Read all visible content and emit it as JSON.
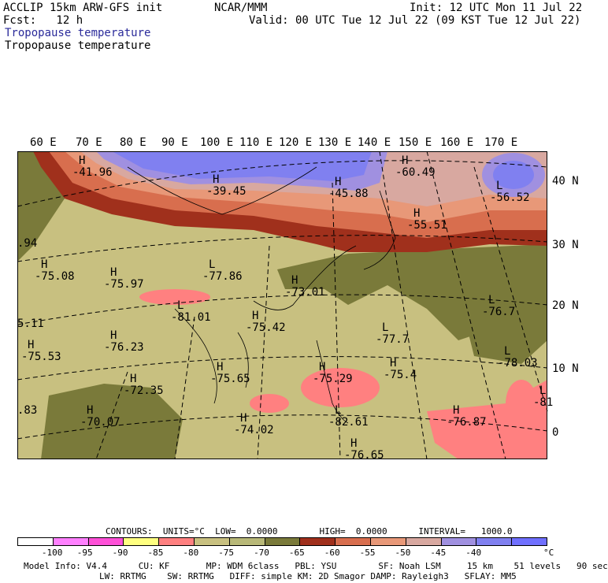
{
  "header": {
    "line1_left": "ACCLIP 15km ARW-GFS init",
    "line1_center": "NCAR/MMM",
    "line1_right": "Init: 12 UTC Mon 11 Jul 22",
    "line2_left": "Fcst:   12 h",
    "line2_right": "Valid: 00 UTC Tue 12 Jul 22 (09 KST Tue 12 Jul 22)",
    "field_title_1": "Tropopause temperature",
    "field_title_2": "Tropopause temperature"
  },
  "axes": {
    "lon_labels": [
      "60 E",
      "70 E",
      "80 E",
      "90 E",
      "100 E",
      "110 E",
      "120 E",
      "130 E",
      "140 E",
      "150 E",
      "160 E",
      "170 E"
    ],
    "lat_labels": [
      "40 N",
      "30 N",
      "20 N",
      "10 N",
      "0"
    ]
  },
  "map_labels": [
    {
      "type": "H",
      "value": "-41.96"
    },
    {
      "type": "H",
      "value": "-39.45"
    },
    {
      "type": "H",
      "value": "-45.88"
    },
    {
      "type": "H",
      "value": "-60.49"
    },
    {
      "type": "L",
      "value": "-56.52"
    },
    {
      "type": "H",
      "value": "-55.51"
    },
    {
      "type": "H",
      "value": "-75.08"
    },
    {
      "type": "H",
      "value": "-75.97"
    },
    {
      "type": "L",
      "value": "-77.86"
    },
    {
      "type": "H",
      "value": "-73.01"
    },
    {
      "type": "L",
      "value": "-76.7"
    },
    {
      "type": "L",
      "value": "-81.01"
    },
    {
      "type": "H",
      "value": "-75.42"
    },
    {
      "type": "L",
      "value": "-77.7"
    },
    {
      "type": "H",
      "value": "-76.23"
    },
    {
      "type": "H",
      "value": "-75.53"
    },
    {
      "type": "L",
      "value": "-78.03"
    },
    {
      "type": "H",
      "value": "-75.65"
    },
    {
      "type": "H",
      "value": "-75.29"
    },
    {
      "type": "H",
      "value": "-75.4"
    },
    {
      "type": "H",
      "value": "-72.35"
    },
    {
      "type": "L",
      "value": "-81"
    },
    {
      "type": "H",
      "value": "-70.07"
    },
    {
      "type": "H",
      "value": "-74.02"
    },
    {
      "type": "L",
      "value": "-82.61"
    },
    {
      "type": "H",
      "value": "-76.87"
    },
    {
      "type": "H",
      "value": "-76.65"
    },
    {
      "type": "",
      "value": ".94"
    },
    {
      "type": "",
      "value": "5.11"
    },
    {
      "type": "",
      "value": ".83"
    }
  ],
  "contours_line": "CONTOURS:  UNITS=°C  LOW=  0.0000        HIGH=  0.0000      INTERVAL=   1000.0",
  "colorbar": {
    "colors": [
      "#ffffff",
      "#ff80ff",
      "#ff50d8",
      "#ffff80",
      "#ff8080",
      "#c8c080",
      "#b8b878",
      "#7a7a3a",
      "#a0301c",
      "#d86e4e",
      "#e89878",
      "#d8a8a0",
      "#a090e0",
      "#8080f0",
      "#7070ff"
    ],
    "ticks": [
      "-100",
      "-95",
      "-90",
      "-85",
      "-80",
      "-75",
      "-70",
      "-65",
      "-60",
      "-55",
      "-50",
      "-45",
      "-40"
    ],
    "unit": "°C"
  },
  "model_info": {
    "line1": "Model Info: V4.4      CU: KF       MP: WDM 6class   PBL: YSU        SF: Noah LSM     15 km    51 levels   90 sec",
    "line2": "LW: RRTMG    SW: RRTMG   DIFF: simple KM: 2D Smagor DAMP: Rayleigh3   SFLAY: MM5"
  }
}
